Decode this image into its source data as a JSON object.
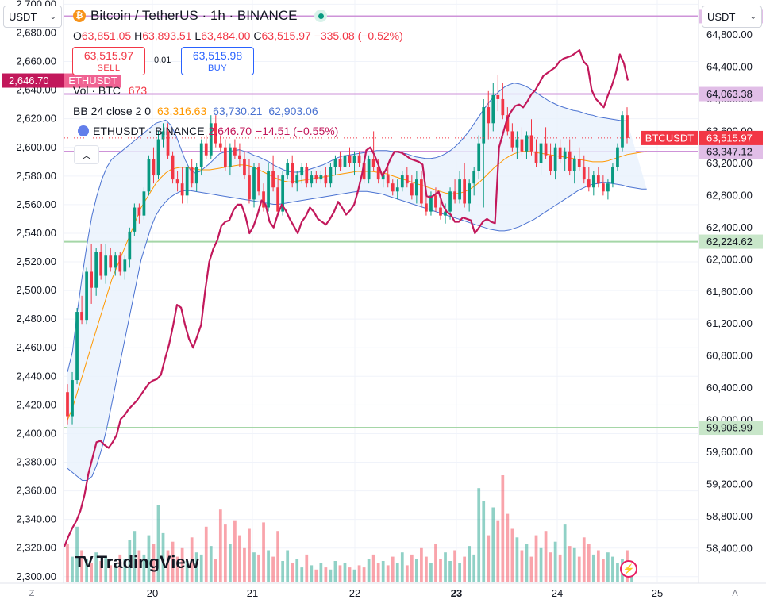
{
  "header": {
    "title": "Bitcoin / TetherUS · 1h · BINANCE",
    "ohlc": {
      "o_label": "O",
      "o": "63,851.05",
      "h_label": "H",
      "h": "63,893.51",
      "l_label": "L",
      "l": "63,484.00",
      "c_label": "C",
      "c": "63,515.97",
      "change": "−335.08 (−0.52%)"
    }
  },
  "units": {
    "left": "USDT",
    "right": "USDT"
  },
  "trade": {
    "sell_price": "63,515.97",
    "sell_label": "SELL",
    "spread": "0.01",
    "buy_price": "63,515.98",
    "buy_label": "BUY"
  },
  "legend": {
    "vol_label": "Vol · BTC",
    "vol_value": "673",
    "bb_label": "BB 24 close 2 0",
    "bb_mid": "63,316.63",
    "bb_upper": "63,730.21",
    "bb_lower": "62,903.06",
    "eth_label": "ETHUSDT · BINANCE",
    "eth_value": "2,646.70",
    "eth_change": "−14.51 (−0.55%)"
  },
  "controls": {
    "collapse": "︿",
    "zoom": "Z",
    "auto": "A"
  },
  "logo": {
    "mark": "TV",
    "text": "TradingView"
  },
  "colors": {
    "up": "#089981",
    "down": "#f23645",
    "eth_line": "#c2185b",
    "bb_band": "#4a72d1",
    "bb_mid": "#ff9800",
    "bb_fill": "#e8f1fc",
    "hline_purple": "#ce93d8",
    "hline_green": "#a5d6a7"
  },
  "chart_data": {
    "type": "candlestick",
    "x_ticks": [
      "20",
      "21",
      "22",
      "23",
      "24",
      "25"
    ],
    "left_axis": {
      "label": "ETHUSDT",
      "ticks": [
        "2,700.00",
        "2,680.00",
        "2,660.00",
        "2,640.00",
        "2,620.00",
        "2,600.00",
        "2,580.00",
        "2,560.00",
        "2,540.00",
        "2,520.00",
        "2,500.00",
        "2,480.00",
        "2,460.00",
        "2,440.00",
        "2,420.00",
        "2,400.00",
        "2,380.00",
        "2,360.00",
        "2,340.00",
        "2,320.00",
        "2,300.00"
      ],
      "range": [
        2296,
        2703
      ]
    },
    "right_axis": {
      "label": "BTCUSDT",
      "ticks": [
        "64,800.00",
        "64,400.00",
        "64,000.00",
        "63,600.00",
        "63,200.00",
        "62,800.00",
        "62,400.00",
        "62,000.00",
        "61,600.00",
        "61,200.00",
        "60,800.00",
        "60,400.00",
        "60,000.00",
        "59,600.00",
        "59,200.00",
        "58,800.00",
        "58,400.00"
      ],
      "range": [
        57980,
        65235
      ]
    },
    "horizontal_lines": [
      {
        "price": "65,032.90",
        "value": 65032.9,
        "kind": "purple"
      },
      {
        "price": "64,063.38",
        "value": 64063.38,
        "kind": "purple"
      },
      {
        "price": "63,347.12",
        "value": 63347.12,
        "kind": "purple"
      },
      {
        "price": "62,224.62",
        "value": 62224.62,
        "kind": "green"
      },
      {
        "price": "59,906.99",
        "value": 59906.99,
        "kind": "green"
      }
    ],
    "btc_last": {
      "label": "BTCUSDT",
      "price": "63,515.97",
      "value": 63515.97
    },
    "eth_last": {
      "label": "ETHUSDT",
      "price": "2,646.70",
      "value": 2646.7
    },
    "btc_candles": [
      [
        60350,
        60450,
        59950,
        60050
      ],
      [
        60050,
        60600,
        59950,
        60500
      ],
      [
        60500,
        61400,
        60450,
        61350
      ],
      [
        61350,
        61550,
        61200,
        61250
      ],
      [
        61250,
        61900,
        61200,
        61850
      ],
      [
        61850,
        62200,
        61450,
        61650
      ],
      [
        61650,
        62150,
        61550,
        62100
      ],
      [
        62100,
        62200,
        61750,
        61800
      ],
      [
        61800,
        62200,
        61700,
        62050
      ],
      [
        62050,
        62150,
        61850,
        61900
      ],
      [
        61900,
        62100,
        61800,
        62050
      ],
      [
        62050,
        62100,
        61800,
        61850
      ],
      [
        61850,
        62050,
        61750,
        62000
      ],
      [
        62000,
        62400,
        61900,
        62350
      ],
      [
        62350,
        62700,
        62300,
        62650
      ],
      [
        62650,
        62700,
        62450,
        62550
      ],
      [
        62550,
        62900,
        62500,
        62850
      ],
      [
        62850,
        63300,
        62800,
        63250
      ],
      [
        63250,
        63400,
        62950,
        63050
      ],
      [
        63050,
        63600,
        63000,
        63500
      ],
      [
        63500,
        63700,
        63400,
        63600
      ],
      [
        63600,
        63700,
        63250,
        63300
      ],
      [
        63300,
        63350,
        62950,
        63000
      ],
      [
        63000,
        63100,
        62850,
        62950
      ],
      [
        62950,
        63150,
        62700,
        62800
      ],
      [
        62800,
        63200,
        62700,
        63150
      ],
      [
        63150,
        63250,
        62900,
        62950
      ],
      [
        62950,
        63200,
        62850,
        63150
      ],
      [
        63150,
        63500,
        63050,
        63450
      ],
      [
        63450,
        63550,
        63250,
        63300
      ],
      [
        63300,
        63800,
        63250,
        63700
      ],
      [
        63700,
        63800,
        63400,
        63450
      ],
      [
        63450,
        63550,
        63350,
        63400
      ],
      [
        63400,
        63500,
        63100,
        63150
      ],
      [
        63150,
        63450,
        63050,
        63400
      ],
      [
        63400,
        63500,
        63250,
        63300
      ],
      [
        63300,
        63450,
        63150,
        63250
      ],
      [
        63250,
        63350,
        63000,
        63050
      ],
      [
        63050,
        63250,
        62700,
        62750
      ],
      [
        62750,
        63200,
        62650,
        63150
      ],
      [
        63150,
        63200,
        62800,
        62850
      ],
      [
        62850,
        62950,
        62600,
        62650
      ],
      [
        62650,
        63200,
        62600,
        63100
      ],
      [
        63100,
        63300,
        62850,
        62900
      ],
      [
        62900,
        63050,
        62550,
        62600
      ],
      [
        62600,
        63100,
        62550,
        63050
      ],
      [
        63050,
        63250,
        63000,
        63200
      ],
      [
        63200,
        63300,
        62900,
        62950
      ],
      [
        62950,
        63100,
        62850,
        63050
      ],
      [
        63050,
        63200,
        62950,
        63150
      ],
      [
        63150,
        63200,
        62900,
        62950
      ],
      [
        62950,
        63100,
        62900,
        63050
      ],
      [
        63050,
        63100,
        62950,
        63000
      ],
      [
        63000,
        63100,
        62950,
        63050
      ],
      [
        63050,
        63150,
        62900,
        62950
      ],
      [
        62950,
        63200,
        62900,
        63150
      ],
      [
        63150,
        63300,
        63050,
        63250
      ],
      [
        63250,
        63350,
        63100,
        63150
      ],
      [
        63150,
        63350,
        63100,
        63300
      ],
      [
        63300,
        63400,
        63150,
        63200
      ],
      [
        63200,
        63350,
        63050,
        63300
      ],
      [
        63300,
        63350,
        63150,
        63200
      ],
      [
        63200,
        63250,
        62950,
        63000
      ],
      [
        63000,
        63300,
        62950,
        63250
      ],
      [
        63250,
        63600,
        63100,
        63150
      ],
      [
        63150,
        63250,
        62950,
        63000
      ],
      [
        63000,
        63100,
        62900,
        63050
      ],
      [
        63050,
        63150,
        62900,
        62950
      ],
      [
        62950,
        63000,
        62800,
        62850
      ],
      [
        62850,
        63000,
        62750,
        62900
      ],
      [
        62900,
        63100,
        62850,
        63050
      ],
      [
        63050,
        63150,
        62900,
        62950
      ],
      [
        62950,
        63050,
        62750,
        62800
      ],
      [
        62800,
        63100,
        62700,
        63000
      ],
      [
        63000,
        63100,
        62650,
        62700
      ],
      [
        62700,
        62800,
        62550,
        62600
      ],
      [
        62600,
        62850,
        62550,
        62800
      ],
      [
        62800,
        62900,
        62600,
        62650
      ],
      [
        62650,
        62800,
        62500,
        62550
      ],
      [
        62550,
        62700,
        62450,
        62600
      ],
      [
        62600,
        62900,
        62500,
        62850
      ],
      [
        62850,
        63000,
        62700,
        62750
      ],
      [
        62750,
        63100,
        62700,
        63000
      ],
      [
        63000,
        63200,
        62650,
        62700
      ],
      [
        62700,
        63000,
        62600,
        62950
      ],
      [
        62950,
        63150,
        62800,
        63100
      ],
      [
        63100,
        63550,
        63000,
        63450
      ],
      [
        63450,
        64000,
        62650,
        63900
      ],
      [
        63900,
        64100,
        63500,
        63700
      ],
      [
        63700,
        64200,
        63600,
        64050
      ],
      [
        64050,
        64300,
        63850,
        64000
      ],
      [
        64000,
        64200,
        63750,
        63800
      ],
      [
        63800,
        63900,
        63550,
        63600
      ],
      [
        63600,
        63700,
        63350,
        63400
      ],
      [
        63400,
        63600,
        63250,
        63500
      ],
      [
        63500,
        63650,
        63300,
        63350
      ],
      [
        63350,
        63600,
        63250,
        63550
      ],
      [
        63550,
        63750,
        63300,
        63350
      ],
      [
        63350,
        63500,
        63150,
        63200
      ],
      [
        63200,
        63500,
        63050,
        63450
      ],
      [
        63450,
        63650,
        63250,
        63300
      ],
      [
        63300,
        63450,
        63050,
        63100
      ],
      [
        63100,
        63450,
        63000,
        63400
      ],
      [
        63400,
        63500,
        63200,
        63250
      ],
      [
        63250,
        63400,
        63100,
        63350
      ],
      [
        63350,
        63500,
        63050,
        63100
      ],
      [
        63100,
        63300,
        62950,
        63250
      ],
      [
        63250,
        63400,
        63100,
        63150
      ],
      [
        63150,
        63300,
        62950,
        63000
      ],
      [
        63000,
        63150,
        62850,
        62900
      ],
      [
        62900,
        63100,
        62800,
        63050
      ],
      [
        63050,
        63150,
        62900,
        62950
      ],
      [
        62950,
        63050,
        62800,
        62850
      ],
      [
        62850,
        63000,
        62750,
        62950
      ],
      [
        62950,
        63200,
        62900,
        63150
      ],
      [
        63150,
        63450,
        63100,
        63400
      ],
      [
        63400,
        63850,
        63350,
        63800
      ],
      [
        63800,
        63900,
        63450,
        63516
      ]
    ],
    "btc_volume": [
      1800,
      1200,
      2600,
      1500,
      1100,
      900,
      1400,
      1000,
      1200,
      800,
      900,
      1300,
      1100,
      2000,
      2400,
      1500,
      1300,
      2200,
      1800,
      3600,
      2300,
      1500,
      1900,
      1200,
      1600,
      1000,
      2100,
      1400,
      1300,
      2600,
      1700,
      1100,
      3400,
      2700,
      1800,
      2900,
      2200,
      1600,
      2500,
      1400,
      1300,
      2800,
      1500,
      1200,
      2400,
      1000,
      1500,
      900,
      1100,
      700,
      1300,
      800,
      600,
      900,
      700,
      600,
      1000,
      800,
      900,
      700,
      600,
      800,
      700,
      1100,
      1300,
      900,
      1000,
      800,
      1200,
      900,
      1400,
      800,
      1300,
      1100,
      1600,
      1200,
      900,
      1800,
      1100,
      1400,
      1000,
      1500,
      900,
      1200,
      1700,
      1300,
      4400,
      3800,
      2200,
      3500,
      2900,
      5000,
      3200,
      2500,
      2100,
      1500,
      1800,
      1200,
      2200,
      1600,
      2400,
      1400,
      1900,
      1300,
      2700,
      1700,
      1600,
      1200,
      2100,
      1800,
      1300,
      1500,
      1100,
      1400,
      1200,
      900,
      1100,
      1500,
      673
    ],
    "btc_volume_max": 5000,
    "bb_upper": [
      60600,
      60850,
      61350,
      61800,
      62200,
      62550,
      62800,
      63000,
      63150,
      63250,
      63300,
      63350,
      63400,
      63450,
      63500,
      63550,
      63600,
      63650,
      63700,
      63720,
      63740,
      63680,
      63560,
      63400,
      63240,
      63120,
      63080,
      63100,
      63150,
      63200,
      63260,
      63320,
      63340,
      63350,
      63360,
      63370,
      63350,
      63330,
      63300,
      63280,
      63250,
      63220,
      63180,
      63150,
      63120,
      63100,
      63090,
      63090,
      63100,
      63120,
      63140,
      63160,
      63180,
      63210,
      63240,
      63270,
      63290,
      63300,
      63310,
      63320,
      63330,
      63340,
      63350,
      63360,
      63360,
      63360,
      63350,
      63340,
      63330,
      63320,
      63300,
      63280,
      63270,
      63260,
      63260,
      63270,
      63290,
      63320,
      63360,
      63410,
      63470,
      63540,
      63620,
      63710,
      63800,
      63890,
      63970,
      64040,
      64100,
      64150,
      64180,
      64200,
      64190,
      64170,
      64140,
      64100,
      64060,
      64020,
      63980,
      63950,
      63920,
      63900,
      63880,
      63860,
      63850,
      63830,
      63810,
      63800,
      63780,
      63770,
      63760,
      63750,
      63740,
      63730,
      63730
    ],
    "bb_mid": [
      60000,
      60150,
      60350,
      60550,
      60750,
      60950,
      61150,
      61350,
      61550,
      61750,
      61900,
      62050,
      62200,
      62350,
      62500,
      62650,
      62750,
      62850,
      62950,
      63020,
      63080,
      63120,
      63140,
      63150,
      63150,
      63140,
      63130,
      63120,
      63120,
      63120,
      63130,
      63140,
      63150,
      63160,
      63170,
      63180,
      63180,
      63170,
      63150,
      63120,
      63090,
      63060,
      63030,
      63000,
      62980,
      62970,
      62970,
      62980,
      62990,
      63000,
      63010,
      63020,
      63030,
      63040,
      63050,
      63060,
      63070,
      63080,
      63090,
      63100,
      63100,
      63100,
      63100,
      63090,
      63080,
      63070,
      63050,
      63030,
      63010,
      62990,
      62970,
      62950,
      62930,
      62910,
      62890,
      62870,
      62850,
      62830,
      62820,
      62820,
      62830,
      62850,
      62880,
      62920,
      62970,
      63030,
      63090,
      63150,
      63200,
      63250,
      63290,
      63320,
      63340,
      63350,
      63350,
      63340,
      63330,
      63320,
      63310,
      63300,
      63290,
      63280,
      63270,
      63260,
      63250,
      63240,
      63230,
      63220,
      63220,
      63220,
      63230,
      63250,
      63270,
      63290,
      63310,
      63320,
      63330,
      63340,
      63345
    ],
    "bb_lower": [
      59400,
      59350,
      59300,
      59250,
      59250,
      59300,
      59450,
      59650,
      59900,
      60200,
      60500,
      60800,
      61100,
      61400,
      61700,
      62000,
      62200,
      62400,
      62550,
      62650,
      62720,
      62780,
      62820,
      62850,
      62860,
      62860,
      62850,
      62840,
      62830,
      62820,
      62810,
      62800,
      62790,
      62780,
      62770,
      62760,
      62750,
      62740,
      62730,
      62720,
      62710,
      62700,
      62690,
      62690,
      62700,
      62710,
      62720,
      62730,
      62740,
      62750,
      62760,
      62770,
      62780,
      62790,
      62800,
      62810,
      62820,
      62830,
      62840,
      62850,
      62850,
      62850,
      62840,
      62830,
      62820,
      62800,
      62780,
      62760,
      62740,
      62720,
      62700,
      62680,
      62660,
      62640,
      62620,
      62600,
      62580,
      62560,
      62540,
      62520,
      62500,
      62480,
      62460,
      62440,
      62420,
      62400,
      62380,
      62370,
      62360,
      62360,
      62370,
      62390,
      62410,
      62440,
      62470,
      62500,
      62540,
      62580,
      62620,
      62660,
      62700,
      62740,
      62780,
      62820,
      62860,
      62890,
      62920,
      62940,
      62950,
      62960,
      62960,
      62950,
      62940,
      62930,
      62910,
      62900,
      62890,
      62880,
      62880
    ],
    "eth_close": [
      2321,
      2328,
      2334,
      2339,
      2346,
      2357,
      2372,
      2383,
      2394,
      2395,
      2392,
      2390,
      2394,
      2399,
      2410,
      2413,
      2417,
      2420,
      2423,
      2427,
      2431,
      2435,
      2437,
      2438,
      2441,
      2452,
      2462,
      2475,
      2490,
      2488,
      2476,
      2466,
      2460,
      2468,
      2476,
      2500,
      2520,
      2529,
      2535,
      2545,
      2548,
      2549,
      2556,
      2560,
      2560,
      2552,
      2540,
      2545,
      2553,
      2563,
      2560,
      2548,
      2544,
      2553,
      2560,
      2556,
      2550,
      2545,
      2540,
      2548,
      2552,
      2558,
      2555,
      2550,
      2548,
      2546,
      2550,
      2555,
      2562,
      2558,
      2553,
      2556,
      2560,
      2570,
      2582,
      2598,
      2600,
      2595,
      2588,
      2580,
      2585,
      2592,
      2597,
      2597,
      2596,
      2594,
      2592,
      2591,
      2590,
      2588,
      2566,
      2565,
      2567,
      2569,
      2560,
      2555,
      2553,
      2548,
      2548,
      2551,
      2550,
      2549,
      2540,
      2544,
      2548,
      2550,
      2548,
      2547,
      2600,
      2610,
      2620,
      2625,
      2629,
      2630,
      2628,
      2632,
      2637,
      2640,
      2645,
      2650,
      2652,
      2654,
      2656,
      2660,
      2662,
      2663,
      2664,
      2666,
      2668,
      2660,
      2657,
      2640,
      2634,
      2631,
      2628,
      2636,
      2643,
      2652,
      2665,
      2659,
      2646.7
    ]
  }
}
